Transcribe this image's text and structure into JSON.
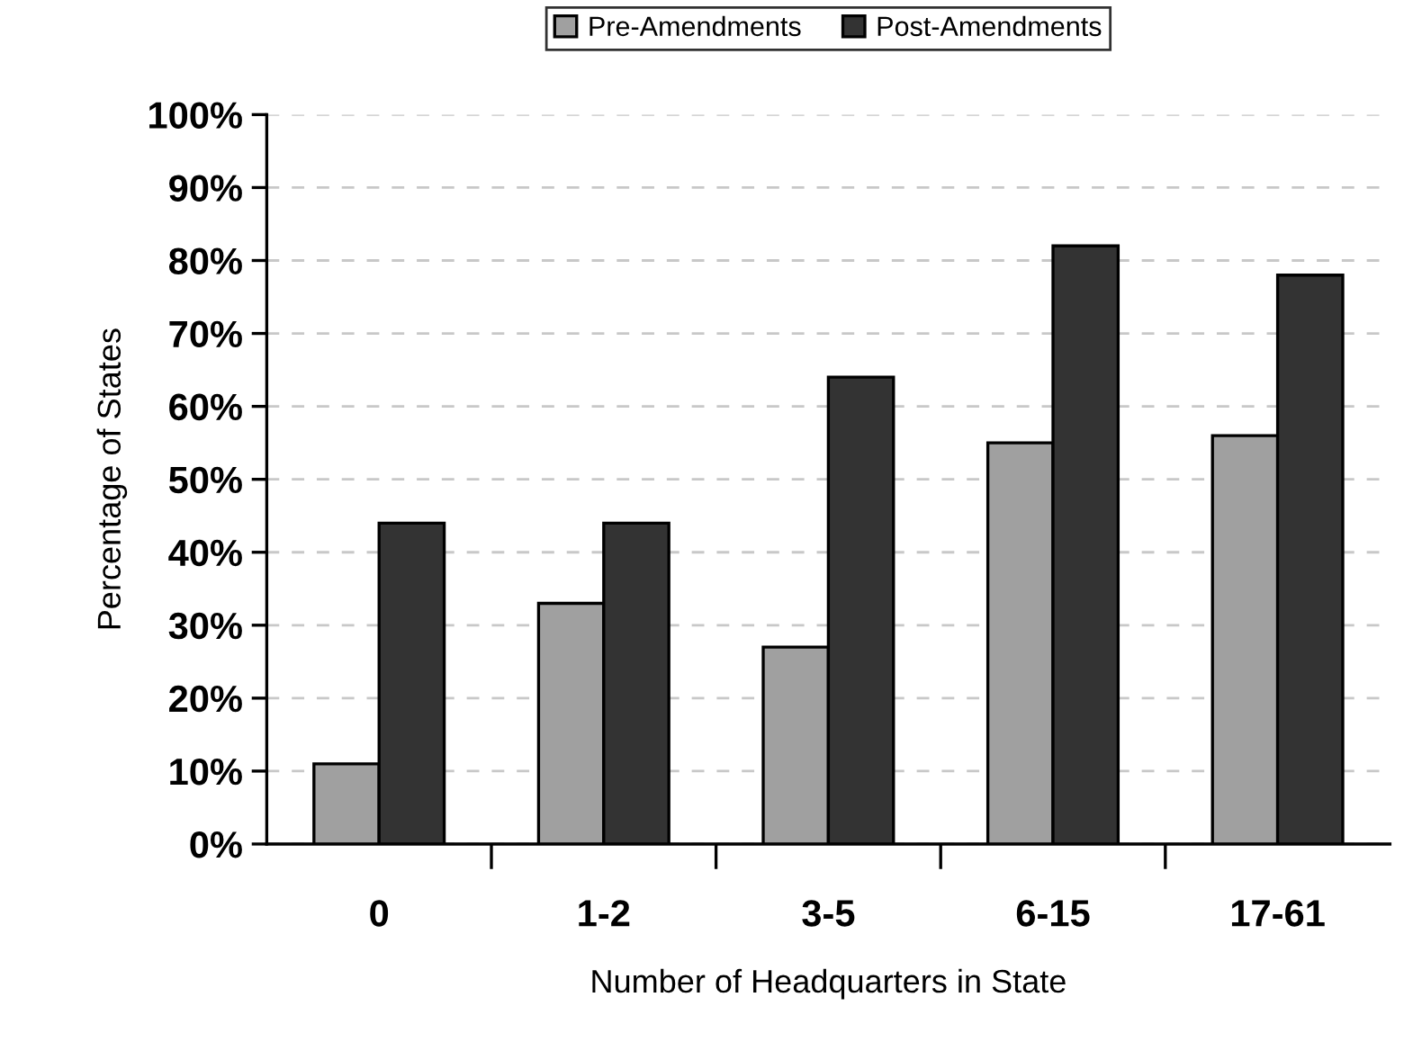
{
  "chart_data": {
    "type": "bar",
    "xlabel": "Number of Headquarters in State",
    "ylabel": "Percentage of States",
    "categories": [
      "0",
      "1-2",
      "3-5",
      "6-15",
      "17-61"
    ],
    "series": [
      {
        "name": "Pre-Amendments",
        "color": "#a0a0a0",
        "values": [
          11,
          33,
          27,
          55,
          56
        ]
      },
      {
        "name": "Post-Amendments",
        "color": "#333333",
        "values": [
          44,
          44,
          64,
          82,
          78
        ]
      }
    ],
    "ylim": [
      0,
      100
    ],
    "yticks": [
      {
        "value": 0,
        "label": "0%"
      },
      {
        "value": 10,
        "label": "10%"
      },
      {
        "value": 20,
        "label": "20%"
      },
      {
        "value": 30,
        "label": "30%"
      },
      {
        "value": 40,
        "label": "40%"
      },
      {
        "value": 50,
        "label": "50%"
      },
      {
        "value": 60,
        "label": "60%"
      },
      {
        "value": 70,
        "label": "70%"
      },
      {
        "value": 80,
        "label": "80%"
      },
      {
        "value": 90,
        "label": "90%"
      },
      {
        "value": 100,
        "label": "100%"
      }
    ],
    "grid": "y",
    "legend": "top"
  }
}
